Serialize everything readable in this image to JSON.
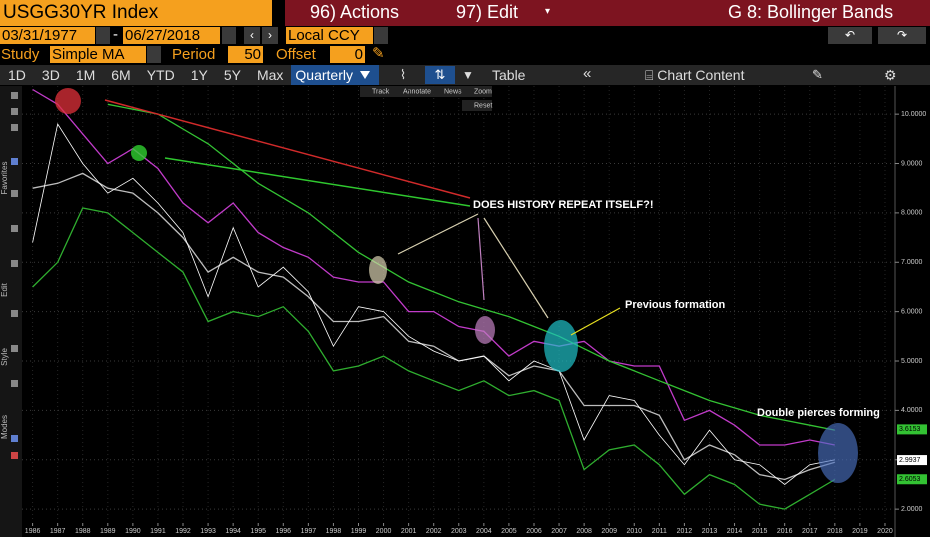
{
  "header": {
    "ticker": "USGG30YR Index",
    "actions": "96) Actions",
    "edit": "97) Edit",
    "title": "G 8: Bollinger Bands"
  },
  "dates": {
    "start": "03/31/1977",
    "separator": "-",
    "end": "06/27/2018",
    "currency": "Local CCY"
  },
  "study": {
    "label": "Study",
    "value": "Simple MA",
    "period_label": "Period",
    "period": 50,
    "offset_label": "Offset",
    "offset": 0
  },
  "tabs": [
    "1D",
    "3D",
    "1M",
    "6M",
    "YTD",
    "1Y",
    "5Y",
    "Max",
    "Quarterly"
  ],
  "toolbar": {
    "table": "Table",
    "content": "Chart Content"
  },
  "chart_tools": [
    "Track",
    "Annotate",
    "News",
    "Zoom",
    "Reset"
  ],
  "sidebar": [
    "Favorites",
    "Edit",
    "Style",
    "Modes"
  ],
  "chart_data": {
    "type": "line",
    "annotations": [
      "DOES HISTORY REPEAT ITSELF?!",
      "Previous formation",
      "Double pierces forming"
    ],
    "x": [
      1986,
      1987,
      1988,
      1989,
      1990,
      1991,
      1992,
      1993,
      1994,
      1995,
      1996,
      1997,
      1998,
      1999,
      2000,
      2001,
      2002,
      2003,
      2004,
      2005,
      2006,
      2007,
      2008,
      2009,
      2010,
      2011,
      2012,
      2013,
      2014,
      2015,
      2016,
      2017,
      2018
    ],
    "series": [
      {
        "color": "#c13bc9",
        "values": [
          10.5,
          10.2,
          9.6,
          9.0,
          9.3,
          8.9,
          8.2,
          7.8,
          8.2,
          7.6,
          7.3,
          7.1,
          6.7,
          6.6,
          6.6,
          6.0,
          6.0,
          5.7,
          5.6,
          5.1,
          5.4,
          5.3,
          5.4,
          5.0,
          4.9,
          4.9,
          3.8,
          4.0,
          3.7,
          3.3,
          3.3,
          3.4,
          3.3
        ]
      },
      {
        "color": "#2fae2f",
        "values": [
          6.5,
          7.0,
          8.1,
          8.0,
          7.6,
          7.2,
          6.8,
          5.8,
          6.0,
          5.9,
          6.1,
          5.6,
          4.8,
          4.9,
          5.1,
          4.8,
          4.6,
          4.4,
          4.6,
          4.3,
          4.4,
          4.2,
          2.8,
          3.2,
          3.3,
          2.9,
          2.3,
          2.7,
          2.5,
          2.1,
          2.0,
          2.3,
          2.6
        ]
      },
      {
        "color": "#bdbdbd",
        "values": [
          8.5,
          8.6,
          8.8,
          8.5,
          8.4,
          8.0,
          7.5,
          6.8,
          7.1,
          6.8,
          6.7,
          6.3,
          5.8,
          5.8,
          5.9,
          5.4,
          5.3,
          5.0,
          5.1,
          4.7,
          4.9,
          4.8,
          4.1,
          4.1,
          4.1,
          3.9,
          3.0,
          3.3,
          3.1,
          2.7,
          2.6,
          2.8,
          2.95
        ]
      },
      {
        "color": "#ffffff",
        "values": [
          7.4,
          9.8,
          9.0,
          8.4,
          8.7,
          8.2,
          7.6,
          6.3,
          7.7,
          6.5,
          6.9,
          6.4,
          5.3,
          6.1,
          6.0,
          5.5,
          5.2,
          5.0,
          5.1,
          4.6,
          5.0,
          4.8,
          3.4,
          4.3,
          4.2,
          3.5,
          2.9,
          3.6,
          3.0,
          2.9,
          2.5,
          2.9,
          3.0
        ]
      },
      {
        "color": "#33c233",
        "values": [
          null,
          null,
          null,
          10.2,
          10.1,
          10.0,
          9.7,
          9.4,
          9.0,
          8.6,
          8.3,
          8.0,
          7.6,
          7.2,
          6.9,
          6.6,
          6.4,
          6.2,
          6.05,
          5.9,
          5.7,
          5.5,
          5.25,
          5.0,
          4.8,
          4.6,
          4.4,
          4.2,
          4.05,
          3.9,
          3.8,
          3.7,
          3.6
        ]
      }
    ],
    "price_tags": [
      {
        "value": 3.6153,
        "color": "#33c233"
      },
      {
        "value": 2.9937,
        "color": "#ffffff"
      },
      {
        "value": 2.6053,
        "color": "#33c233"
      }
    ],
    "xlim": [
      1984.7,
      2020.4
    ],
    "xticks": [
      1986,
      1987,
      1988,
      1989,
      1990,
      1991,
      1992,
      1993,
      1994,
      1995,
      1996,
      1997,
      1998,
      1999,
      2000,
      2001,
      2002,
      2003,
      2004,
      2005,
      2006,
      2007,
      2008,
      2009,
      2010,
      2011,
      2012,
      2013,
      2014,
      2015,
      2016,
      2017,
      2018,
      2019,
      2020
    ],
    "ylim": [
      1.78,
      10.57
    ],
    "yticks": [
      {
        "value": 2,
        "label": "2.0000"
      },
      {
        "value": 3,
        "label": "3.0000"
      },
      {
        "value": 4,
        "label": "4.0000"
      },
      {
        "value": 5,
        "label": "5.0000"
      },
      {
        "value": 6,
        "label": "6.0000"
      },
      {
        "value": 7,
        "label": "7.0000"
      },
      {
        "value": 8,
        "label": "8.0000"
      },
      {
        "value": 9,
        "label": "9.0000"
      },
      {
        "value": 10,
        "label": "10.0000"
      }
    ],
    "grid": true
  }
}
